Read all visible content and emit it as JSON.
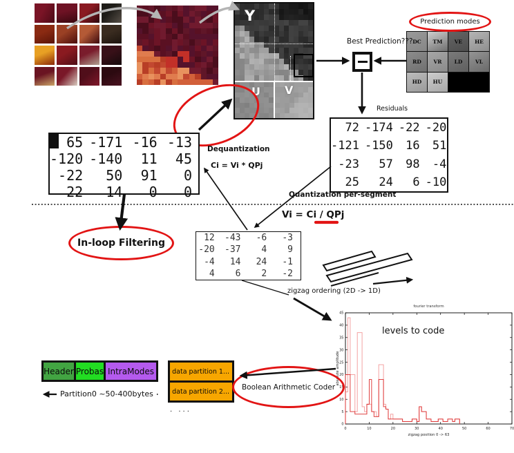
{
  "colors": {
    "accent_red": "#e21414",
    "orange": "#f7a600",
    "header_green": "#42a442",
    "probas_green": "#22dd22",
    "intramodes_purple": "#b45aee",
    "arrow_gray": "#b4b4b4"
  },
  "yuv": {
    "y": "Y",
    "u": "U",
    "v": "V"
  },
  "prediction": {
    "ellipse_label": "Prediction modes",
    "best_label": "Best Prediction???",
    "modes": [
      {
        "label": "DC",
        "bg": "#9a9a9a",
        "bg2": "#868686"
      },
      {
        "label": "TM",
        "bg": "#cfcfcf",
        "bg2": "#6f6f6f"
      },
      {
        "label": "VE",
        "bg": "#646464",
        "bg2": "#4e4e4e"
      },
      {
        "label": "HE",
        "bg": "#b4b4b4",
        "bg2": "#8f8f8f"
      },
      {
        "label": "RD",
        "bg": "#8c8c8c",
        "bg2": "#6f6f6f"
      },
      {
        "label": "VR",
        "bg": "#a6a6a6",
        "bg2": "#8a8a8a"
      },
      {
        "label": "LD",
        "bg": "#7a7a7a",
        "bg2": "#5f5f5f"
      },
      {
        "label": "VL",
        "bg": "#949494",
        "bg2": "#6a6a6a"
      },
      {
        "label": "HD",
        "bg": "#bcbcbc",
        "bg2": "#9a9a9a"
      },
      {
        "label": "HU",
        "bg": "#cccccc",
        "bg2": "#a8a8a8"
      }
    ]
  },
  "flow": {
    "residuals_label": "Residuals",
    "dequantization_label": "Dequantization",
    "dequantization_formula": "Ci = Vi * QPj",
    "quantization_label": "Quantization per-segment",
    "quantization_formula": "Vi = Ci / QPj",
    "inloop_label": "In-loop Filtering",
    "zigzag_label": "zigzag ordering  (2D -> 1D)",
    "coder_label": "Boolean Arithmetic Coder"
  },
  "matrices": {
    "reconstructed": [
      [
        65,
        -171,
        -16,
        -13
      ],
      [
        -120,
        -140,
        11,
        45
      ],
      [
        -22,
        50,
        91,
        0
      ],
      [
        22,
        14,
        0,
        0
      ]
    ],
    "residuals": [
      [
        72,
        -174,
        -22,
        -20
      ],
      [
        -121,
        -150,
        16,
        51
      ],
      [
        -23,
        57,
        98,
        -4
      ],
      [
        25,
        24,
        6,
        -10
      ]
    ],
    "quantized": [
      [
        12,
        -43,
        -6,
        -3
      ],
      [
        -20,
        -37,
        4,
        9
      ],
      [
        -4,
        14,
        24,
        -1
      ],
      [
        4,
        6,
        2,
        -2
      ]
    ]
  },
  "bitstream": {
    "header": "Header",
    "probas": "Probas",
    "intramodes": "IntraModes",
    "partition0_label": "Partition0 ~50-400bytes",
    "partitions": [
      "data partition 1...",
      "data partition 2..."
    ],
    "more_dots": ". ..."
  },
  "chart_data": {
    "type": "line",
    "title": "fourier transform",
    "xlabel": "zigzag position  0 -> 63",
    "ylabel": "absolute amplitude",
    "annotation": "levels to code",
    "xlim": [
      0,
      70
    ],
    "ylim": [
      0,
      45
    ],
    "xticks": [
      0,
      10,
      20,
      30,
      40,
      50,
      60,
      70
    ],
    "yticks": [
      0,
      5,
      10,
      15,
      20,
      25,
      30,
      35,
      40,
      45
    ],
    "series": [
      {
        "name": "levels-pale",
        "color": "#f4a2a2",
        "values": [
          13,
          43,
          20,
          20,
          5,
          37,
          37,
          7,
          5,
          8,
          8,
          5,
          5,
          3,
          24,
          24,
          8,
          6,
          2,
          4,
          2,
          2,
          2,
          2,
          1,
          1,
          1,
          1,
          2,
          2,
          1,
          7,
          5,
          5,
          2,
          2,
          1,
          1,
          1,
          2,
          2,
          1,
          1,
          2,
          2,
          1,
          2,
          2
        ]
      },
      {
        "name": "levels-bright",
        "color": "#dc2a2a",
        "values": [
          20,
          20,
          5,
          5,
          4,
          4,
          4,
          4,
          4,
          8,
          18,
          5,
          3,
          3,
          18,
          18,
          7,
          6,
          2,
          2,
          2,
          2,
          2,
          2,
          1,
          1,
          1,
          1,
          2,
          2,
          1,
          7,
          5,
          5,
          2,
          2,
          1,
          1,
          1,
          2,
          2,
          1,
          1,
          2,
          2,
          1,
          2,
          2
        ]
      }
    ]
  },
  "artwork": {
    "source_tiles": [
      [
        "#7a1426",
        "#4a0a16"
      ],
      [
        "#6e1224",
        "#38080f"
      ],
      [
        "#8a1a22",
        "#2a060c"
      ],
      [
        "#1e1c18",
        "#585048"
      ],
      [
        "#8a2a12",
        "#5a1408"
      ],
      [
        "#9a4024",
        "#4a0e0c"
      ],
      [
        "#b45a36",
        "#3c0a0e"
      ],
      [
        "#3a2c20",
        "#1c140e"
      ],
      [
        "#e8a024",
        "#8a2808"
      ],
      [
        "#8a1a20",
        "#500e16"
      ],
      [
        "#7a1c2c",
        "#b0a090"
      ],
      [
        "#381018",
        "#160a0c"
      ],
      [
        "#6a1422",
        "#caa468"
      ],
      [
        "#7a1828",
        "#d8ccc0"
      ],
      [
        "#500e1a",
        "#80182a"
      ],
      [
        "#2c0a10",
        "#4a1220"
      ]
    ],
    "maroon_palette": [
      "#5a1022",
      "#6c1426",
      "#4a0d1c",
      "#701a2e",
      "#601628",
      "#55122b"
    ],
    "orange_palette": [
      "#d2603a",
      "#e07c4e",
      "#c24830",
      "#e8925e",
      "#b83e26",
      "#d86f3f"
    ],
    "blotch_red": "#c23028"
  }
}
